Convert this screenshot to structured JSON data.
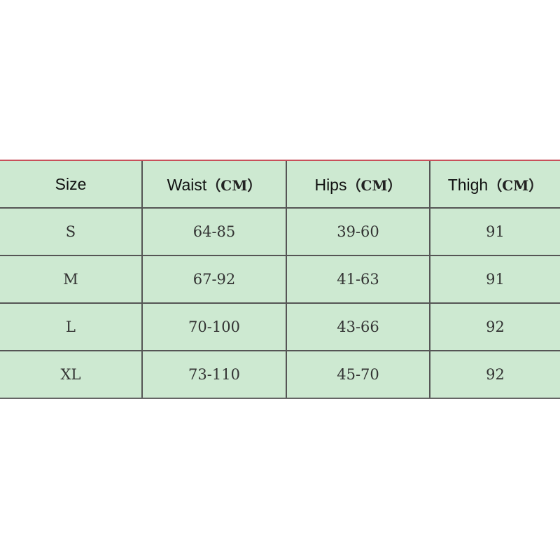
{
  "table": {
    "headers": [
      {
        "label": "Size",
        "unit": ""
      },
      {
        "label": "Waist",
        "unit": "（CM）"
      },
      {
        "label": "Hips",
        "unit": "（CM）"
      },
      {
        "label": "Thigh",
        "unit": "（CM）"
      }
    ],
    "rows": [
      [
        "S",
        "64-85",
        "39-60",
        "91"
      ],
      [
        "M",
        "67-92",
        "41-63",
        "91"
      ],
      [
        "L",
        "70-100",
        "43-66",
        "92"
      ],
      [
        "XL",
        "73-110",
        "45-70",
        "92"
      ]
    ]
  },
  "colors": {
    "background": "#cde9d1",
    "top_border": "#c8505a",
    "grid": "#555555"
  }
}
